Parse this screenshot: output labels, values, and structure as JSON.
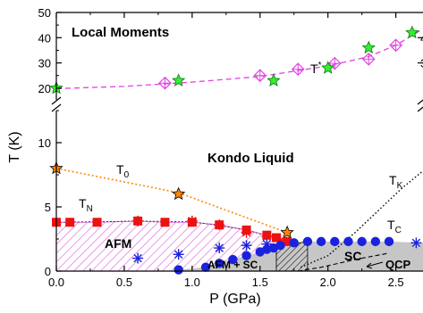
{
  "chart_data": {
    "type": "scatter",
    "xlabel": "P (GPa)",
    "ylabel": "T (K)",
    "xlim": [
      0,
      2.7
    ],
    "ylim_lower": [
      0,
      14
    ],
    "ylim_upper": [
      15,
      50
    ],
    "axis_break": "double slash at T≈14 K (linear lower panel 0–14 K, compressed upper panel 15–50 K)",
    "x_ticks": [
      "0.0",
      "0.5",
      "1.0",
      "1.5",
      "2.0",
      "2.5"
    ],
    "x_tick_values": [
      0,
      0.5,
      1.0,
      1.5,
      2.0,
      2.5
    ],
    "y_ticks_lower": [
      "0",
      "5",
      "10"
    ],
    "y_tick_values_lower": [
      0,
      5,
      10
    ],
    "y_ticks_upper": [
      "20",
      "30",
      "40",
      "50"
    ],
    "y_tick_values_upper": [
      20,
      30,
      40,
      50
    ],
    "y_ticks_right": [
      "30",
      "40"
    ],
    "y_tick_values_right": [
      30,
      40
    ],
    "grid": false,
    "region_labels": {
      "local_moments": "Local Moments",
      "kondo_liquid": "Kondo Liquid",
      "afm": "AFM",
      "afm_sc": "AFM + SC",
      "sc": "SC",
      "qcp": "QCP"
    },
    "curve_labels": {
      "t_star": "T",
      "t_star_sup": "*",
      "t0": "T",
      "t0_sub": "0",
      "tn": "T",
      "tn_sub": "N",
      "tk": "T",
      "tk_sub": "K",
      "tc": "T",
      "tc_sub": "C"
    },
    "colors": {
      "t_star": "#e040e0",
      "t_star_alt": "#33ee33",
      "t0": "#ff8800",
      "tn": "#ee1111",
      "tc": "#1a22dd",
      "afm_hatch": "#dd66dd",
      "sc_fill": "#c6c6c6",
      "background": "#ffffff",
      "axis": "#000000"
    },
    "series": [
      {
        "name": "T* (open diamonds)",
        "marker": "diamond-cross",
        "points": [
          [
            0.8,
            22
          ],
          [
            1.5,
            25
          ],
          [
            1.78,
            27.5
          ],
          [
            2.05,
            29.8
          ],
          [
            2.3,
            31.5
          ],
          [
            2.5,
            37
          ]
        ]
      },
      {
        "name": "T* (green stars)",
        "marker": "star",
        "points": [
          [
            0.0,
            20
          ],
          [
            0.9,
            23
          ],
          [
            1.6,
            23
          ],
          [
            2.0,
            28
          ],
          [
            2.3,
            36
          ],
          [
            2.62,
            42
          ]
        ]
      },
      {
        "name": "T* fit",
        "marker": "dashed-line",
        "points": [
          [
            0.0,
            19.8
          ],
          [
            0.5,
            20.7
          ],
          [
            1.0,
            22.4
          ],
          [
            1.5,
            24.6
          ],
          [
            2.0,
            28.8
          ],
          [
            2.3,
            32.5
          ],
          [
            2.5,
            37
          ],
          [
            2.7,
            43.5
          ]
        ]
      },
      {
        "name": "T0",
        "marker": "star",
        "points": [
          [
            0.0,
            8
          ],
          [
            0.9,
            6
          ],
          [
            1.7,
            3
          ]
        ]
      },
      {
        "name": "T0 fit",
        "marker": "dotted-line",
        "points": [
          [
            0.0,
            8
          ],
          [
            0.9,
            6.1
          ],
          [
            1.7,
            3.0
          ]
        ]
      },
      {
        "name": "TN (red squares)",
        "marker": "square",
        "points": [
          [
            0.0,
            3.8
          ],
          [
            0.1,
            3.8
          ],
          [
            0.3,
            3.8
          ],
          [
            0.6,
            3.9
          ],
          [
            0.8,
            3.8
          ],
          [
            1.0,
            3.8
          ],
          [
            1.2,
            3.6
          ],
          [
            1.4,
            3.2
          ],
          [
            1.55,
            2.8
          ],
          [
            1.62,
            2.6
          ],
          [
            1.7,
            2.3
          ]
        ]
      },
      {
        "name": "TN (red asterisks)",
        "marker": "asterisk",
        "points": [
          [
            0.6,
            3.9
          ],
          [
            1.0,
            3.9
          ],
          [
            1.2,
            3.6
          ],
          [
            1.4,
            3.0
          ],
          [
            1.55,
            2.7
          ],
          [
            1.65,
            2.4
          ]
        ]
      },
      {
        "name": "TC (blue circles)",
        "marker": "circle",
        "points": [
          [
            0.9,
            0.1
          ],
          [
            1.1,
            0.3
          ],
          [
            1.2,
            0.6
          ],
          [
            1.3,
            0.9
          ],
          [
            1.4,
            1.2
          ],
          [
            1.5,
            1.5
          ],
          [
            1.55,
            1.7
          ],
          [
            1.6,
            1.8
          ],
          [
            1.65,
            2.0
          ],
          [
            1.75,
            2.2
          ],
          [
            1.85,
            2.3
          ],
          [
            1.95,
            2.3
          ],
          [
            2.05,
            2.3
          ],
          [
            2.15,
            2.3
          ],
          [
            2.25,
            2.3
          ],
          [
            2.35,
            2.3
          ],
          [
            2.45,
            2.3
          ]
        ]
      },
      {
        "name": "TC (blue asterisks)",
        "marker": "asterisk",
        "points": [
          [
            0.6,
            1.0
          ],
          [
            0.9,
            1.3
          ],
          [
            1.2,
            1.8
          ],
          [
            1.4,
            2.0
          ],
          [
            1.55,
            2.1
          ],
          [
            2.65,
            2.2
          ]
        ]
      },
      {
        "name": "TK (dotted)",
        "marker": "dotted-line",
        "points": [
          [
            1.8,
            0.3
          ],
          [
            2.0,
            1.2
          ],
          [
            2.2,
            3.0
          ],
          [
            2.4,
            5.0
          ],
          [
            2.55,
            6.5
          ],
          [
            2.7,
            7.8
          ]
        ]
      },
      {
        "name": "QCP",
        "marker": "point",
        "points": [
          [
            2.35,
            0
          ]
        ]
      }
    ]
  }
}
